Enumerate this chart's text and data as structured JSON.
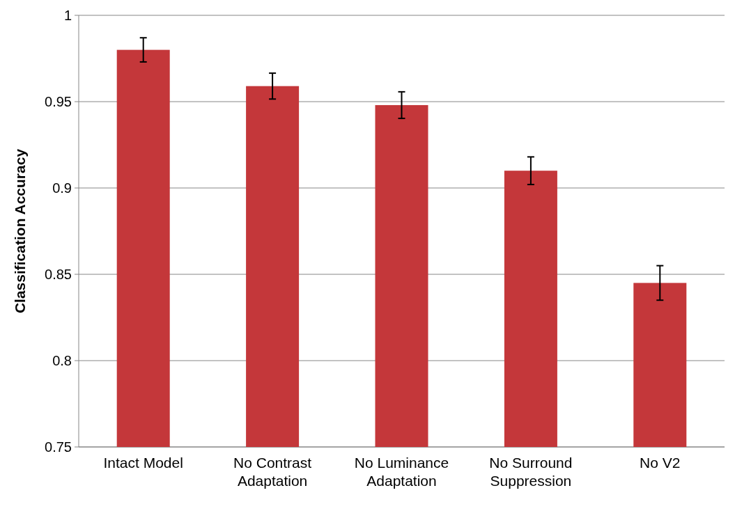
{
  "chart_data": {
    "type": "bar",
    "ylabel": "Classification Accuracy",
    "categories": [
      "Intact Model",
      "No Contrast Adaptation",
      "No Luminance Adaptation",
      "No Surround Suppression",
      "No V2"
    ],
    "values": [
      0.98,
      0.959,
      0.948,
      0.91,
      0.845
    ],
    "errors": [
      0.007,
      0.0075,
      0.0077,
      0.008,
      0.01
    ],
    "color": "#c4373a",
    "ylim": [
      0.75,
      1
    ],
    "yticks": [
      0.75,
      0.8,
      0.85,
      0.9,
      0.95,
      1
    ],
    "grid": "y"
  }
}
